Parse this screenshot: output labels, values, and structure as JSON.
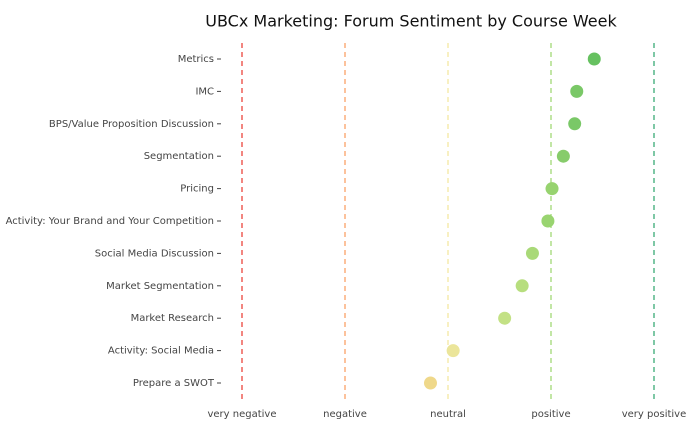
{
  "chart_data": {
    "type": "dot",
    "title": "UBCx Marketing: Forum Sentiment by Course Week",
    "categories": [
      "Metrics",
      "IMC",
      "BPS/Value Proposition Discussion",
      "Segmentation",
      "Pricing",
      "Activity: Your Brand and Your Competition",
      "Social Media Discussion",
      "Market Segmentation",
      "Market Research",
      "Activity: Social Media",
      "Prepare a SWOT"
    ],
    "values": [
      1.42,
      1.25,
      1.23,
      1.12,
      1.01,
      0.97,
      0.82,
      0.72,
      0.55,
      0.05,
      -0.17
    ],
    "colors": [
      "#66c160",
      "#7ac867",
      "#7ac867",
      "#87cc6b",
      "#97d36f",
      "#99d470",
      "#a9d978",
      "#b7de7e",
      "#c3e185",
      "#ebe59a",
      "#efd88a"
    ],
    "xlim": [
      -2.2,
      2.2
    ],
    "xticks": [
      {
        "value": -2,
        "label": "very negative"
      },
      {
        "value": -1,
        "label": "negative"
      },
      {
        "value": 0,
        "label": "neutral"
      },
      {
        "value": 1,
        "label": "positive"
      },
      {
        "value": 2,
        "label": "very positive"
      }
    ],
    "xtick_colors": [
      "#e8352c",
      "#f99a5a",
      "#f3e59a",
      "#9ad66a",
      "#2aa36b"
    ],
    "grid": true
  }
}
